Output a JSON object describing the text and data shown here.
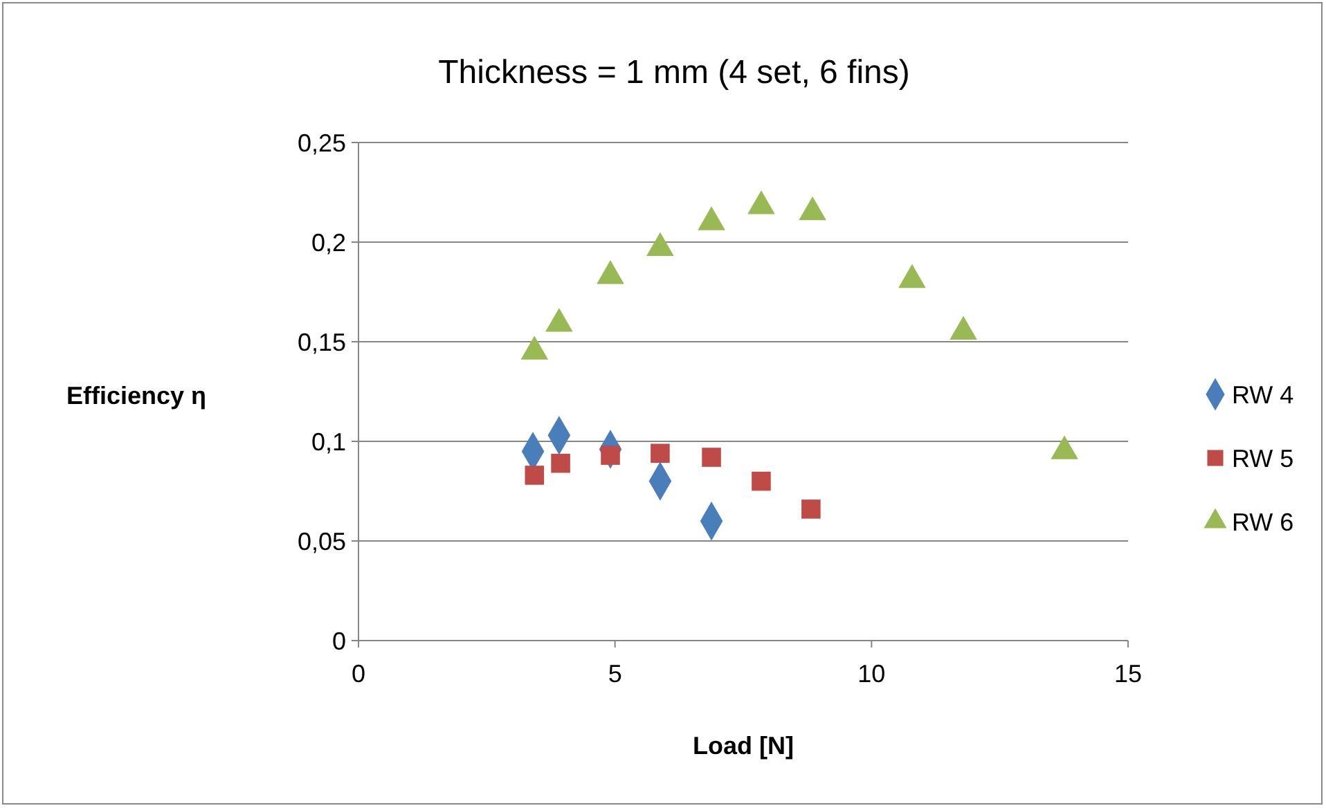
{
  "chart_data": {
    "type": "scatter",
    "title": "Thickness = 1 mm (4 set, 6 fins)",
    "xlabel": "Load [N]",
    "ylabel": "Efficiency η",
    "xlim": [
      0,
      15
    ],
    "xticks": [
      0,
      5,
      10,
      15
    ],
    "ylim": [
      0,
      0.25
    ],
    "yticks": [
      {
        "value": 0,
        "label": "0"
      },
      {
        "value": 0.05,
        "label": "0,05"
      },
      {
        "value": 0.1,
        "label": "0,1"
      },
      {
        "value": 0.15,
        "label": "0,15"
      },
      {
        "value": 0.2,
        "label": "0,2"
      },
      {
        "value": 0.25,
        "label": "0,25"
      }
    ],
    "grid": "y",
    "legend": "right",
    "series": [
      {
        "name": "RW 4",
        "color": "#4a7ebb",
        "marker": "diamond",
        "x": [
          3.4,
          3.91,
          4.91,
          5.88,
          6.88
        ],
        "values": [
          0.095,
          0.103,
          0.096,
          0.08,
          0.06
        ]
      },
      {
        "name": "RW 5",
        "color": "#be4b48",
        "marker": "square",
        "x": [
          3.43,
          3.94,
          4.91,
          5.88,
          6.88,
          7.85,
          8.82
        ],
        "values": [
          0.083,
          0.089,
          0.093,
          0.094,
          0.092,
          0.08,
          0.066
        ]
      },
      {
        "name": "RW 6",
        "color": "#98b954",
        "marker": "triangle",
        "x": [
          3.43,
          3.91,
          4.91,
          5.88,
          6.88,
          7.85,
          8.85,
          10.79,
          11.79,
          13.76
        ],
        "values": [
          0.145,
          0.159,
          0.183,
          0.197,
          0.21,
          0.218,
          0.215,
          0.181,
          0.155,
          0.095
        ]
      }
    ]
  }
}
